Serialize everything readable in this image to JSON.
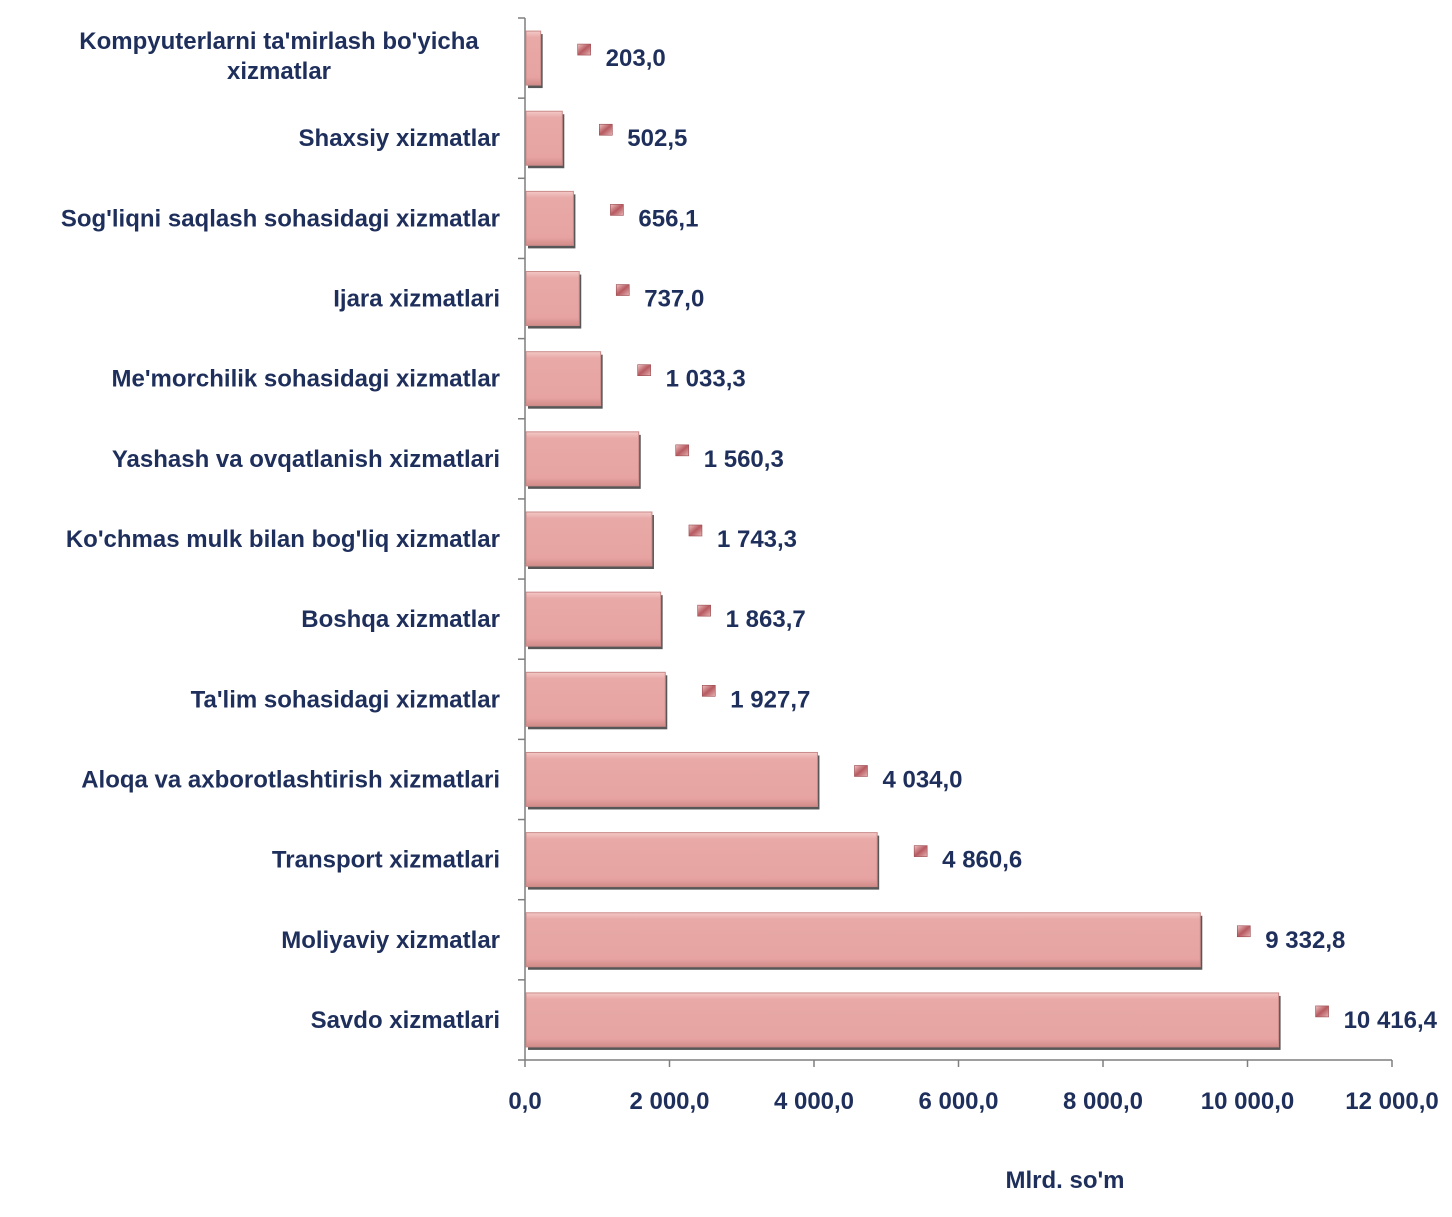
{
  "chart_data": {
    "type": "bar",
    "orientation": "horizontal",
    "categories": [
      "Kompyuterlarni ta'mirlash bo'yicha xizmatlar",
      "Shaxsiy xizmatlar",
      "Sog'liqni saqlash sohasidagi xizmatlar",
      "Ijara xizmatlari",
      "Me'morchilik sohasidagi xizmatlar",
      "Yashash va ovqatlanish xizmatlari",
      "Ko'chmas mulk bilan bog'liq xizmatlar",
      "Boshqa xizmatlar",
      "Ta'lim sohasidagi xizmatlar",
      "Aloqa va axborotlashtirish xizmatlari",
      "Transport xizmatlari",
      "Moliyaviy xizmatlar",
      "Savdo xizmatlari"
    ],
    "category_lines": [
      [
        "Kompyuterlarni ta'mirlash bo'yicha",
        "xizmatlar"
      ],
      [
        "Shaxsiy xizmatlar"
      ],
      [
        "Sog'liqni saqlash sohasidagi xizmatlar"
      ],
      [
        "Ijara xizmatlari"
      ],
      [
        "Me'morchilik sohasidagi xizmatlar"
      ],
      [
        "Yashash va ovqatlanish xizmatlari"
      ],
      [
        "Ko'chmas mulk bilan bog'liq xizmatlar"
      ],
      [
        "Boshqa xizmatlar"
      ],
      [
        "Ta'lim sohasidagi xizmatlar"
      ],
      [
        "Aloqa va axborotlashtirish xizmatlari"
      ],
      [
        "Transport xizmatlari"
      ],
      [
        "Moliyaviy xizmatlar"
      ],
      [
        "Savdo xizmatlari"
      ]
    ],
    "values": [
      203.0,
      502.5,
      656.1,
      737.0,
      1033.3,
      1560.3,
      1743.3,
      1863.7,
      1927.7,
      4034.0,
      4860.6,
      9332.8,
      10416.4
    ],
    "value_labels": [
      "203,0",
      "502,5",
      "656,1",
      "737,0",
      "1 033,3",
      "1 560,3",
      "1 743,3",
      "1 863,7",
      "1 927,7",
      "4 034,0",
      "4 860,6",
      "9 332,8",
      "10 416,4"
    ],
    "xlim": [
      0,
      12000
    ],
    "x_ticks": [
      0,
      2000,
      4000,
      6000,
      8000,
      10000,
      12000
    ],
    "x_tick_labels": [
      "0,0",
      "2 000,0",
      "4 000,0",
      "6 000,0",
      "8 000,0",
      "10 000,0",
      "12 000,0"
    ],
    "xlabel": "Mlrd. so'm",
    "ylabel": "",
    "title": "",
    "grid": false,
    "legend": "none",
    "colors": {
      "bar_fill": "#e6a3a1",
      "bar_highlight": "#f3c9c7",
      "bar_shadow": "#3a3a3a",
      "label_marker": "#c06a6e",
      "text": "#1f2f5c",
      "axis": "#7f7f7f"
    }
  }
}
